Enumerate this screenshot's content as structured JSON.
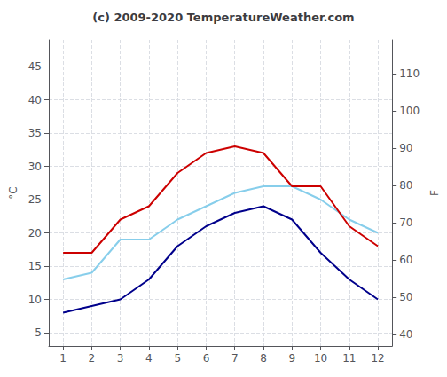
{
  "chart_data": {
    "type": "line",
    "title": "(c) 2009-2020 TemperatureWeather.com",
    "x": [
      1,
      2,
      3,
      4,
      5,
      6,
      7,
      8,
      9,
      10,
      11,
      12
    ],
    "xlim": [
      0.5,
      12.5
    ],
    "xticks": [
      1,
      2,
      3,
      4,
      5,
      6,
      7,
      8,
      9,
      10,
      11,
      12
    ],
    "ylabel": "°C",
    "ylim": [
      3,
      49
    ],
    "yticks": [
      5,
      10,
      15,
      20,
      25,
      30,
      35,
      40,
      45
    ],
    "y2label": "F",
    "y2lim": [
      37,
      119
    ],
    "y2ticks": [
      40,
      50,
      60,
      70,
      80,
      90,
      100,
      110
    ],
    "grid": true,
    "series": [
      {
        "color": "#87ceeb",
        "values": [
          13,
          14,
          19,
          19,
          22,
          24,
          26,
          27,
          27,
          25,
          22,
          20
        ]
      },
      {
        "color": "#cc0000",
        "values": [
          17,
          17,
          22,
          24,
          29,
          32,
          33,
          32,
          27,
          27,
          21,
          18
        ]
      },
      {
        "color": "#00008b",
        "values": [
          8,
          9,
          10,
          13,
          18,
          21,
          23,
          24,
          22,
          17,
          13,
          10
        ]
      }
    ]
  }
}
